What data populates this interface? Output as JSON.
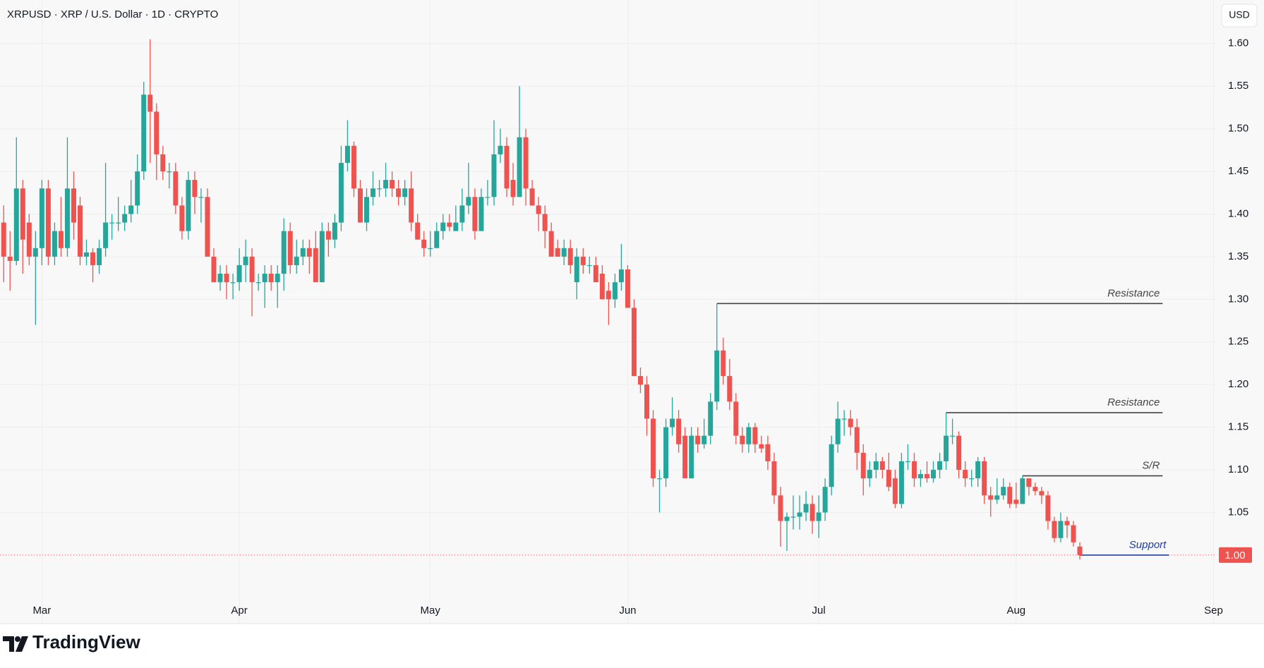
{
  "header": {
    "symbol": "XRPUSD · XRP / U.S. Dollar · 1D · CRYPTO",
    "currency": "USD"
  },
  "brand": "TradingView",
  "chart_data": {
    "type": "candlestick",
    "up_color": "#26a69a",
    "down_color": "#ef5350",
    "xlim": [
      -0.58,
      190.5
    ],
    "xticks": [
      {
        "value": 6,
        "label": "Mar"
      },
      {
        "value": 37,
        "label": "Apr"
      },
      {
        "value": 67,
        "label": "May"
      },
      {
        "value": 98,
        "label": "Jun"
      },
      {
        "value": 128,
        "label": "Jul"
      },
      {
        "value": 159,
        "label": "Aug"
      },
      {
        "value": 190,
        "label": "Sep"
      }
    ],
    "ylim": [
      0.947,
      1.651
    ],
    "yticks": [
      1.05,
      {
        "value": 1.1,
        "label": "1.10"
      },
      1.15,
      {
        "value": 1.2,
        "label": "1.20"
      },
      1.25,
      {
        "value": 1.3,
        "label": "1.30"
      },
      1.35,
      {
        "value": 1.4,
        "label": "1.40"
      },
      1.45,
      {
        "value": 1.5,
        "label": "1.50"
      },
      1.55,
      {
        "value": 1.6,
        "label": "1.60"
      }
    ],
    "grid": true,
    "last_price": {
      "value": 1,
      "label": "1.00",
      "color": "#ef5350"
    },
    "levels": [
      {
        "label": "Resistance",
        "value": 1.295,
        "start": 112,
        "end": 182,
        "color": "#444444"
      },
      {
        "label": "Resistance",
        "value": 1.167,
        "start": 148,
        "end": 182,
        "color": "#444444"
      },
      {
        "label": "S/R",
        "value": 1.093,
        "start": 160,
        "end": 182,
        "color": "#444444"
      },
      {
        "label": "Support",
        "value": 1.0,
        "start": 169,
        "end": 183,
        "color": "#1f3fa8"
      }
    ],
    "candles": [
      [
        1.39,
        1.41,
        1.32,
        1.35
      ],
      [
        1.35,
        1.38,
        1.31,
        1.345
      ],
      [
        1.345,
        1.49,
        1.34,
        1.43
      ],
      [
        1.43,
        1.44,
        1.33,
        1.37
      ],
      [
        1.39,
        1.4,
        1.34,
        1.35
      ],
      [
        1.35,
        1.38,
        1.27,
        1.36
      ],
      [
        1.36,
        1.44,
        1.34,
        1.43
      ],
      [
        1.43,
        1.44,
        1.34,
        1.35
      ],
      [
        1.35,
        1.39,
        1.34,
        1.38
      ],
      [
        1.38,
        1.42,
        1.35,
        1.36
      ],
      [
        1.36,
        1.49,
        1.35,
        1.43
      ],
      [
        1.43,
        1.45,
        1.37,
        1.39
      ],
      [
        1.41,
        1.42,
        1.34,
        1.35
      ],
      [
        1.35,
        1.37,
        1.34,
        1.355
      ],
      [
        1.355,
        1.36,
        1.32,
        1.34
      ],
      [
        1.34,
        1.37,
        1.33,
        1.36
      ],
      [
        1.36,
        1.46,
        1.35,
        1.39
      ],
      [
        1.39,
        1.4,
        1.37,
        1.39
      ],
      [
        1.39,
        1.42,
        1.38,
        1.39
      ],
      [
        1.39,
        1.41,
        1.38,
        1.4
      ],
      [
        1.4,
        1.44,
        1.39,
        1.41
      ],
      [
        1.41,
        1.47,
        1.4,
        1.45
      ],
      [
        1.45,
        1.555,
        1.44,
        1.54
      ],
      [
        1.54,
        1.605,
        1.46,
        1.52
      ],
      [
        1.52,
        1.53,
        1.44,
        1.47
      ],
      [
        1.47,
        1.48,
        1.44,
        1.45
      ],
      [
        1.45,
        1.46,
        1.43,
        1.45
      ],
      [
        1.45,
        1.46,
        1.4,
        1.41
      ],
      [
        1.41,
        1.42,
        1.37,
        1.38
      ],
      [
        1.38,
        1.45,
        1.37,
        1.44
      ],
      [
        1.44,
        1.45,
        1.4,
        1.42
      ],
      [
        1.42,
        1.43,
        1.39,
        1.42
      ],
      [
        1.42,
        1.43,
        1.35,
        1.35
      ],
      [
        1.35,
        1.36,
        1.32,
        1.32
      ],
      [
        1.32,
        1.34,
        1.31,
        1.33
      ],
      [
        1.33,
        1.34,
        1.3,
        1.32
      ],
      [
        1.32,
        1.33,
        1.3,
        1.32
      ],
      [
        1.32,
        1.36,
        1.31,
        1.34
      ],
      [
        1.34,
        1.37,
        1.32,
        1.35
      ],
      [
        1.35,
        1.36,
        1.28,
        1.32
      ],
      [
        1.32,
        1.33,
        1.31,
        1.32
      ],
      [
        1.32,
        1.34,
        1.29,
        1.33
      ],
      [
        1.33,
        1.34,
        1.31,
        1.32
      ],
      [
        1.32,
        1.34,
        1.29,
        1.33
      ],
      [
        1.33,
        1.395,
        1.31,
        1.38
      ],
      [
        1.38,
        1.39,
        1.33,
        1.34
      ],
      [
        1.34,
        1.37,
        1.33,
        1.35
      ],
      [
        1.35,
        1.37,
        1.34,
        1.36
      ],
      [
        1.36,
        1.37,
        1.33,
        1.35
      ],
      [
        1.36,
        1.38,
        1.32,
        1.32
      ],
      [
        1.32,
        1.39,
        1.32,
        1.38
      ],
      [
        1.38,
        1.39,
        1.35,
        1.37
      ],
      [
        1.37,
        1.4,
        1.36,
        1.39
      ],
      [
        1.39,
        1.48,
        1.38,
        1.46
      ],
      [
        1.46,
        1.51,
        1.45,
        1.48
      ],
      [
        1.48,
        1.485,
        1.42,
        1.43
      ],
      [
        1.43,
        1.44,
        1.39,
        1.39
      ],
      [
        1.39,
        1.43,
        1.38,
        1.42
      ],
      [
        1.42,
        1.45,
        1.41,
        1.43
      ],
      [
        1.43,
        1.44,
        1.42,
        1.43
      ],
      [
        1.43,
        1.46,
        1.42,
        1.44
      ],
      [
        1.44,
        1.45,
        1.42,
        1.43
      ],
      [
        1.43,
        1.44,
        1.41,
        1.42
      ],
      [
        1.42,
        1.44,
        1.41,
        1.43
      ],
      [
        1.43,
        1.45,
        1.38,
        1.39
      ],
      [
        1.39,
        1.4,
        1.37,
        1.37
      ],
      [
        1.37,
        1.38,
        1.35,
        1.36
      ],
      [
        1.36,
        1.38,
        1.35,
        1.36
      ],
      [
        1.36,
        1.39,
        1.36,
        1.38
      ],
      [
        1.38,
        1.4,
        1.37,
        1.39
      ],
      [
        1.39,
        1.4,
        1.38,
        1.385
      ],
      [
        1.38,
        1.41,
        1.38,
        1.39
      ],
      [
        1.39,
        1.43,
        1.38,
        1.41
      ],
      [
        1.41,
        1.46,
        1.4,
        1.42
      ],
      [
        1.42,
        1.43,
        1.37,
        1.38
      ],
      [
        1.38,
        1.43,
        1.38,
        1.42
      ],
      [
        1.42,
        1.44,
        1.41,
        1.42
      ],
      [
        1.42,
        1.51,
        1.41,
        1.47
      ],
      [
        1.47,
        1.5,
        1.46,
        1.48
      ],
      [
        1.48,
        1.49,
        1.42,
        1.43
      ],
      [
        1.44,
        1.46,
        1.41,
        1.42
      ],
      [
        1.42,
        1.55,
        1.42,
        1.49
      ],
      [
        1.49,
        1.5,
        1.41,
        1.43
      ],
      [
        1.43,
        1.44,
        1.41,
        1.41
      ],
      [
        1.41,
        1.42,
        1.38,
        1.4
      ],
      [
        1.4,
        1.41,
        1.36,
        1.38
      ],
      [
        1.38,
        1.39,
        1.35,
        1.35
      ],
      [
        1.36,
        1.37,
        1.35,
        1.35
      ],
      [
        1.35,
        1.37,
        1.34,
        1.36
      ],
      [
        1.36,
        1.37,
        1.33,
        1.34
      ],
      [
        1.32,
        1.36,
        1.3,
        1.35
      ],
      [
        1.35,
        1.36,
        1.33,
        1.34
      ],
      [
        1.34,
        1.35,
        1.33,
        1.34
      ],
      [
        1.34,
        1.35,
        1.32,
        1.32
      ],
      [
        1.33,
        1.34,
        1.3,
        1.3
      ],
      [
        1.31,
        1.32,
        1.27,
        1.3
      ],
      [
        1.3,
        1.33,
        1.29,
        1.32
      ],
      [
        1.32,
        1.365,
        1.31,
        1.335
      ],
      [
        1.335,
        1.34,
        1.29,
        1.29
      ],
      [
        1.29,
        1.3,
        1.21,
        1.21
      ],
      [
        1.21,
        1.22,
        1.19,
        1.2
      ],
      [
        1.2,
        1.21,
        1.14,
        1.16
      ],
      [
        1.16,
        1.17,
        1.08,
        1.09
      ],
      [
        1.09,
        1.1,
        1.05,
        1.09
      ],
      [
        1.09,
        1.16,
        1.08,
        1.15
      ],
      [
        1.15,
        1.185,
        1.14,
        1.16
      ],
      [
        1.16,
        1.17,
        1.12,
        1.13
      ],
      [
        1.14,
        1.15,
        1.09,
        1.09
      ],
      [
        1.09,
        1.15,
        1.09,
        1.14
      ],
      [
        1.14,
        1.15,
        1.12,
        1.13
      ],
      [
        1.13,
        1.16,
        1.125,
        1.14
      ],
      [
        1.14,
        1.19,
        1.13,
        1.18
      ],
      [
        1.18,
        1.295,
        1.17,
        1.24
      ],
      [
        1.24,
        1.255,
        1.2,
        1.21
      ],
      [
        1.21,
        1.23,
        1.17,
        1.18
      ],
      [
        1.18,
        1.19,
        1.13,
        1.14
      ],
      [
        1.14,
        1.15,
        1.12,
        1.13
      ],
      [
        1.13,
        1.155,
        1.12,
        1.15
      ],
      [
        1.15,
        1.155,
        1.12,
        1.13
      ],
      [
        1.13,
        1.14,
        1.12,
        1.125
      ],
      [
        1.13,
        1.14,
        1.1,
        1.11
      ],
      [
        1.11,
        1.12,
        1.06,
        1.07
      ],
      [
        1.07,
        1.08,
        1.01,
        1.04
      ],
      [
        1.04,
        1.05,
        1.005,
        1.045
      ],
      [
        1.045,
        1.07,
        1.03,
        1.045
      ],
      [
        1.045,
        1.07,
        1.03,
        1.05
      ],
      [
        1.05,
        1.075,
        1.04,
        1.06
      ],
      [
        1.06,
        1.07,
        1.025,
        1.04
      ],
      [
        1.04,
        1.07,
        1.02,
        1.05
      ],
      [
        1.05,
        1.09,
        1.04,
        1.08
      ],
      [
        1.08,
        1.14,
        1.07,
        1.13
      ],
      [
        1.13,
        1.18,
        1.12,
        1.16
      ],
      [
        1.16,
        1.17,
        1.14,
        1.16
      ],
      [
        1.16,
        1.17,
        1.14,
        1.15
      ],
      [
        1.15,
        1.16,
        1.1,
        1.12
      ],
      [
        1.12,
        1.13,
        1.07,
        1.09
      ],
      [
        1.09,
        1.11,
        1.08,
        1.1
      ],
      [
        1.1,
        1.12,
        1.09,
        1.11
      ],
      [
        1.11,
        1.115,
        1.09,
        1.1
      ],
      [
        1.1,
        1.12,
        1.075,
        1.08
      ],
      [
        1.09,
        1.1,
        1.055,
        1.06
      ],
      [
        1.06,
        1.12,
        1.055,
        1.11
      ],
      [
        1.11,
        1.13,
        1.1,
        1.11
      ],
      [
        1.11,
        1.12,
        1.08,
        1.09
      ],
      [
        1.09,
        1.1,
        1.08,
        1.095
      ],
      [
        1.095,
        1.11,
        1.085,
        1.09
      ],
      [
        1.09,
        1.11,
        1.085,
        1.1
      ],
      [
        1.1,
        1.12,
        1.09,
        1.11
      ],
      [
        1.11,
        1.167,
        1.1,
        1.14
      ],
      [
        1.14,
        1.16,
        1.13,
        1.14
      ],
      [
        1.14,
        1.145,
        1.09,
        1.1
      ],
      [
        1.1,
        1.11,
        1.08,
        1.09
      ],
      [
        1.09,
        1.1,
        1.08,
        1.09
      ],
      [
        1.09,
        1.115,
        1.08,
        1.11
      ],
      [
        1.11,
        1.115,
        1.06,
        1.07
      ],
      [
        1.07,
        1.08,
        1.045,
        1.065
      ],
      [
        1.065,
        1.09,
        1.06,
        1.07
      ],
      [
        1.07,
        1.09,
        1.065,
        1.08
      ],
      [
        1.08,
        1.085,
        1.055,
        1.06
      ],
      [
        1.065,
        1.085,
        1.055,
        1.06
      ],
      [
        1.06,
        1.093,
        1.06,
        1.09
      ],
      [
        1.09,
        1.09,
        1.07,
        1.08
      ],
      [
        1.08,
        1.085,
        1.07,
        1.075
      ],
      [
        1.075,
        1.08,
        1.06,
        1.07
      ],
      [
        1.07,
        1.075,
        1.03,
        1.04
      ],
      [
        1.04,
        1.045,
        1.015,
        1.02
      ],
      [
        1.02,
        1.05,
        1.015,
        1.04
      ],
      [
        1.04,
        1.045,
        1.02,
        1.035
      ],
      [
        1.035,
        1.04,
        1.01,
        1.015
      ],
      [
        1.01,
        1.015,
        0.995,
        1.0
      ]
    ]
  }
}
